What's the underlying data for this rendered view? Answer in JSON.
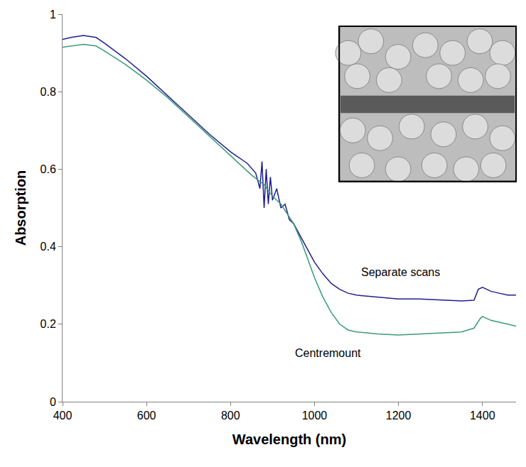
{
  "chart_data": {
    "type": "line",
    "x_label": "Wavelength (nm)",
    "y_label": "Absorption",
    "xlim": [
      400,
      1480
    ],
    "xticks": [
      400,
      600,
      800,
      1000,
      1200,
      1400
    ],
    "ylim": [
      0,
      1
    ],
    "yticks": [
      0,
      0.2,
      0.4,
      0.6,
      0.8,
      1
    ],
    "grid": false,
    "series": [
      {
        "name": "Separate scans",
        "color": "#1f1f8f",
        "x": [
          400,
          420,
          450,
          480,
          500,
          550,
          600,
          650,
          700,
          750,
          800,
          820,
          840,
          860,
          870,
          875,
          880,
          885,
          890,
          895,
          900,
          910,
          920,
          930,
          940,
          950,
          960,
          980,
          1000,
          1020,
          1040,
          1060,
          1080,
          1100,
          1150,
          1200,
          1250,
          1300,
          1350,
          1380,
          1390,
          1400,
          1420,
          1440,
          1460,
          1480
        ],
        "values": [
          0.935,
          0.94,
          0.945,
          0.94,
          0.925,
          0.885,
          0.84,
          0.79,
          0.74,
          0.69,
          0.645,
          0.63,
          0.615,
          0.59,
          0.55,
          0.62,
          0.5,
          0.6,
          0.51,
          0.58,
          0.52,
          0.55,
          0.5,
          0.51,
          0.47,
          0.46,
          0.44,
          0.4,
          0.36,
          0.33,
          0.305,
          0.29,
          0.28,
          0.275,
          0.27,
          0.265,
          0.265,
          0.262,
          0.26,
          0.262,
          0.29,
          0.295,
          0.285,
          0.28,
          0.275,
          0.275
        ]
      },
      {
        "name": "Centremount",
        "color": "#3a9a7a",
        "x": [
          400,
          450,
          480,
          500,
          550,
          600,
          650,
          700,
          750,
          800,
          850,
          880,
          900,
          920,
          950,
          970,
          1000,
          1020,
          1040,
          1060,
          1080,
          1100,
          1150,
          1200,
          1250,
          1300,
          1350,
          1380,
          1395,
          1400,
          1420,
          1440,
          1460,
          1480
        ],
        "values": [
          0.915,
          0.922,
          0.918,
          0.905,
          0.87,
          0.83,
          0.785,
          0.735,
          0.685,
          0.635,
          0.585,
          0.56,
          0.53,
          0.51,
          0.46,
          0.41,
          0.32,
          0.27,
          0.23,
          0.2,
          0.185,
          0.18,
          0.175,
          0.172,
          0.175,
          0.178,
          0.18,
          0.19,
          0.215,
          0.22,
          0.21,
          0.205,
          0.2,
          0.195
        ]
      }
    ],
    "annotations": [
      {
        "text": "Separate scans"
      },
      {
        "text": "Centremount"
      }
    ]
  }
}
